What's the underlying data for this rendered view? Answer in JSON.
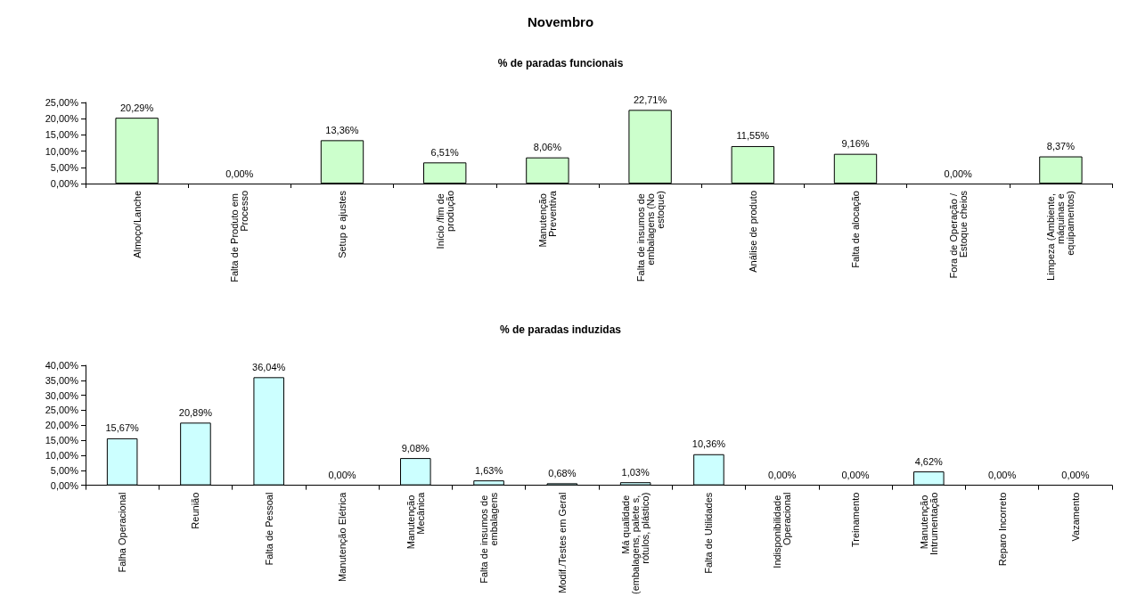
{
  "chart_data": [
    {
      "type": "bar",
      "title": "Novembro",
      "subtitle": "% de paradas funcionais",
      "categories": [
        "Almoço/Lanche",
        "Falta de Produto em Processo",
        "Setup e ajustes",
        "Início /fim de produção",
        "Manutenção Preventiva",
        "Falta de insumos de embalagens (No estoque)",
        "Análise de produto",
        "Falta de alocação",
        "Fora de Operação / Estoque cheios",
        "Limpeza (Ambiente, máquinas e equipamentos)"
      ],
      "values": [
        20.29,
        0,
        13.36,
        6.51,
        8.06,
        22.71,
        11.55,
        9.16,
        0,
        8.37
      ],
      "value_labels": [
        "20,29%",
        "0,00%",
        "13,36%",
        "6,51%",
        "8,06%",
        "22,71%",
        "11,55%",
        "9,16%",
        "0,00%",
        "8,37%"
      ],
      "color": "#ccffcc",
      "ylim": [
        0,
        25
      ],
      "yticks": [
        {
          "value": 0,
          "label": "0,00%"
        },
        {
          "value": 5,
          "label": "5,00%"
        },
        {
          "value": 10,
          "label": "10,00%"
        },
        {
          "value": 15,
          "label": "15,00%"
        },
        {
          "value": 20,
          "label": "20,00%"
        },
        {
          "value": 25,
          "label": "25,00%"
        }
      ]
    },
    {
      "type": "bar",
      "title": "% de paradas induzidas",
      "categories": [
        "Falha Operacional",
        "Reunião",
        "Falta de Pessoal",
        "Manutenção Elétrica",
        "Manutenção Mecânica",
        "Falta de insumos de embalagens",
        "Modif./Testes em Geral",
        "Má qualidade (embalagens, palete s, rótulos, plástico)",
        "Falta de Utilidades",
        "Indisponibilidade Operacional",
        "Treinamento",
        "Manutenção Intrumentação",
        "Reparo Incorreto",
        "Vazamento"
      ],
      "values": [
        15.67,
        20.89,
        36.04,
        0,
        9.08,
        1.63,
        0.68,
        1.03,
        10.36,
        0,
        0,
        4.62,
        0,
        0
      ],
      "value_labels": [
        "15,67%",
        "20,89%",
        "36,04%",
        "0,00%",
        "9,08%",
        "1,63%",
        "0,68%",
        "1,03%",
        "10,36%",
        "0,00%",
        "0,00%",
        "4,62%",
        "0,00%",
        "0,00%"
      ],
      "color": "#ccffff",
      "ylim": [
        0,
        40
      ],
      "yticks": [
        {
          "value": 0,
          "label": "0,00%"
        },
        {
          "value": 5,
          "label": "5,00%"
        },
        {
          "value": 10,
          "label": "10,00%"
        },
        {
          "value": 15,
          "label": "15,00%"
        },
        {
          "value": 20,
          "label": "20,00%"
        },
        {
          "value": 25,
          "label": "25,00%"
        },
        {
          "value": 30,
          "label": "30,00%"
        },
        {
          "value": 35,
          "label": "35,00%"
        },
        {
          "value": 40,
          "label": "40,00%"
        }
      ]
    }
  ]
}
